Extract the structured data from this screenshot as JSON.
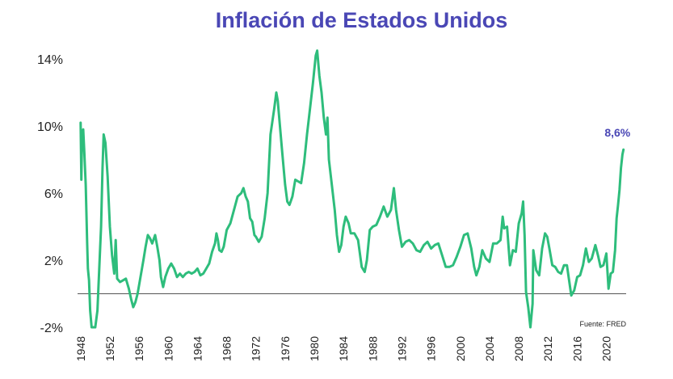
{
  "chart_data": {
    "type": "line",
    "title": "Inflación de Estados Unidos",
    "source": "Fuente: FRED",
    "xlabel": "",
    "ylabel": "",
    "xlim": [
      1947.8,
      2022.6
    ],
    "ylim": [
      -2,
      14
    ],
    "y_ticks": [
      {
        "value": 14,
        "label": "14%"
      },
      {
        "value": 10,
        "label": "10%"
      },
      {
        "value": 6,
        "label": "6%"
      },
      {
        "value": 2,
        "label": "2%"
      },
      {
        "value": -2,
        "label": "-2%"
      }
    ],
    "x_ticks": [
      {
        "value": 1948,
        "label": "1948"
      },
      {
        "value": 1952,
        "label": "1952"
      },
      {
        "value": 1956,
        "label": "1956"
      },
      {
        "value": 1960,
        "label": "1960"
      },
      {
        "value": 1964,
        "label": "1964"
      },
      {
        "value": 1968,
        "label": "1968"
      },
      {
        "value": 1972,
        "label": "1972"
      },
      {
        "value": 1976,
        "label": "1976"
      },
      {
        "value": 1980,
        "label": "1980"
      },
      {
        "value": 1984,
        "label": "1984"
      },
      {
        "value": 1988,
        "label": "1988"
      },
      {
        "value": 1992,
        "label": "1992"
      },
      {
        "value": 1996,
        "label": "1996"
      },
      {
        "value": 2000,
        "label": "2000"
      },
      {
        "value": 2004,
        "label": "2004"
      },
      {
        "value": 2008,
        "label": "2008"
      },
      {
        "value": 2012,
        "label": "2012"
      },
      {
        "value": 2016,
        "label": "2016"
      },
      {
        "value": 2020,
        "label": "2020"
      }
    ],
    "reference_line": 0,
    "grid": false,
    "colors": {
      "line": "#2ebd7c",
      "title": "#4a47b5",
      "annotation": "#4a47b5",
      "baseline": "#555555"
    },
    "annotation": {
      "text": "8,6%",
      "x": 2022.3,
      "y": 8.6
    },
    "series": [
      {
        "points": [
          [
            1948.0,
            10.2
          ],
          [
            1948.1,
            6.8
          ],
          [
            1948.2,
            9.5
          ],
          [
            1948.35,
            9.8
          ],
          [
            1948.5,
            8.5
          ],
          [
            1948.7,
            6.5
          ],
          [
            1948.9,
            3.0
          ],
          [
            1949.0,
            1.5
          ],
          [
            1949.15,
            0.8
          ],
          [
            1949.3,
            -1.0
          ],
          [
            1949.5,
            -2.0
          ],
          [
            1949.8,
            -2.5
          ],
          [
            1950.0,
            -2.0
          ],
          [
            1950.3,
            -1.0
          ],
          [
            1950.6,
            2.0
          ],
          [
            1950.8,
            4.0
          ],
          [
            1951.0,
            7.5
          ],
          [
            1951.15,
            9.5
          ],
          [
            1951.4,
            9.0
          ],
          [
            1951.7,
            7.0
          ],
          [
            1952.0,
            4.0
          ],
          [
            1952.3,
            2.3
          ],
          [
            1952.6,
            1.2
          ],
          [
            1952.8,
            3.2
          ],
          [
            1953.0,
            0.9
          ],
          [
            1953.4,
            0.7
          ],
          [
            1953.8,
            0.8
          ],
          [
            1954.2,
            0.9
          ],
          [
            1954.6,
            0.3
          ],
          [
            1954.9,
            -0.3
          ],
          [
            1955.2,
            -0.8
          ],
          [
            1955.5,
            -0.5
          ],
          [
            1955.8,
            0.0
          ],
          [
            1956.2,
            1.0
          ],
          [
            1956.6,
            2.0
          ],
          [
            1956.9,
            2.8
          ],
          [
            1957.2,
            3.5
          ],
          [
            1957.5,
            3.3
          ],
          [
            1957.8,
            3.0
          ],
          [
            1958.2,
            3.5
          ],
          [
            1958.5,
            2.8
          ],
          [
            1958.8,
            2.0
          ],
          [
            1959.0,
            1.0
          ],
          [
            1959.3,
            0.4
          ],
          [
            1959.6,
            1.0
          ],
          [
            1960.0,
            1.5
          ],
          [
            1960.4,
            1.8
          ],
          [
            1960.8,
            1.5
          ],
          [
            1961.2,
            1.0
          ],
          [
            1961.6,
            1.2
          ],
          [
            1962.0,
            1.0
          ],
          [
            1962.4,
            1.2
          ],
          [
            1962.8,
            1.3
          ],
          [
            1963.2,
            1.2
          ],
          [
            1963.6,
            1.3
          ],
          [
            1964.0,
            1.5
          ],
          [
            1964.4,
            1.1
          ],
          [
            1964.8,
            1.2
          ],
          [
            1965.2,
            1.5
          ],
          [
            1965.6,
            1.8
          ],
          [
            1966.0,
            2.5
          ],
          [
            1966.4,
            3.0
          ],
          [
            1966.6,
            3.6
          ],
          [
            1966.8,
            3.2
          ],
          [
            1967.0,
            2.6
          ],
          [
            1967.3,
            2.5
          ],
          [
            1967.6,
            2.8
          ],
          [
            1968.0,
            3.8
          ],
          [
            1968.5,
            4.2
          ],
          [
            1969.0,
            5.0
          ],
          [
            1969.5,
            5.8
          ],
          [
            1970.0,
            6.0
          ],
          [
            1970.3,
            6.3
          ],
          [
            1970.6,
            5.8
          ],
          [
            1970.9,
            5.5
          ],
          [
            1971.2,
            4.5
          ],
          [
            1971.5,
            4.3
          ],
          [
            1971.8,
            3.5
          ],
          [
            1972.0,
            3.4
          ],
          [
            1972.4,
            3.1
          ],
          [
            1972.8,
            3.4
          ],
          [
            1973.2,
            4.5
          ],
          [
            1973.6,
            6.0
          ],
          [
            1974.0,
            9.5
          ],
          [
            1974.5,
            11.0
          ],
          [
            1974.8,
            12.0
          ],
          [
            1975.0,
            11.5
          ],
          [
            1975.3,
            10.0
          ],
          [
            1975.6,
            8.5
          ],
          [
            1976.0,
            6.5
          ],
          [
            1976.3,
            5.5
          ],
          [
            1976.6,
            5.3
          ],
          [
            1977.0,
            5.8
          ],
          [
            1977.4,
            6.8
          ],
          [
            1977.8,
            6.7
          ],
          [
            1978.2,
            6.6
          ],
          [
            1978.6,
            7.8
          ],
          [
            1979.0,
            9.5
          ],
          [
            1979.4,
            11.0
          ],
          [
            1979.8,
            12.5
          ],
          [
            1980.2,
            14.2
          ],
          [
            1980.4,
            14.5
          ],
          [
            1980.7,
            13.0
          ],
          [
            1981.0,
            12.0
          ],
          [
            1981.3,
            10.5
          ],
          [
            1981.6,
            9.5
          ],
          [
            1981.8,
            10.5
          ],
          [
            1982.0,
            8.0
          ],
          [
            1982.4,
            6.5
          ],
          [
            1982.8,
            5.0
          ],
          [
            1983.1,
            3.5
          ],
          [
            1983.4,
            2.5
          ],
          [
            1983.7,
            2.9
          ],
          [
            1984.0,
            4.0
          ],
          [
            1984.3,
            4.6
          ],
          [
            1984.7,
            4.2
          ],
          [
            1985.0,
            3.6
          ],
          [
            1985.5,
            3.6
          ],
          [
            1986.0,
            3.2
          ],
          [
            1986.5,
            1.6
          ],
          [
            1986.9,
            1.3
          ],
          [
            1987.2,
            2.0
          ],
          [
            1987.6,
            3.8
          ],
          [
            1988.0,
            4.0
          ],
          [
            1988.5,
            4.1
          ],
          [
            1989.0,
            4.6
          ],
          [
            1989.5,
            5.2
          ],
          [
            1990.0,
            4.6
          ],
          [
            1990.5,
            5.0
          ],
          [
            1990.9,
            6.3
          ],
          [
            1991.2,
            5.0
          ],
          [
            1991.6,
            3.8
          ],
          [
            1992.0,
            2.8
          ],
          [
            1992.5,
            3.1
          ],
          [
            1993.0,
            3.2
          ],
          [
            1993.5,
            3.0
          ],
          [
            1994.0,
            2.6
          ],
          [
            1994.5,
            2.5
          ],
          [
            1995.0,
            2.9
          ],
          [
            1995.5,
            3.1
          ],
          [
            1996.0,
            2.7
          ],
          [
            1996.5,
            2.9
          ],
          [
            1997.0,
            3.0
          ],
          [
            1997.5,
            2.3
          ],
          [
            1998.0,
            1.6
          ],
          [
            1998.5,
            1.6
          ],
          [
            1999.0,
            1.7
          ],
          [
            1999.5,
            2.2
          ],
          [
            2000.0,
            2.8
          ],
          [
            2000.5,
            3.5
          ],
          [
            2001.0,
            3.6
          ],
          [
            2001.5,
            2.7
          ],
          [
            2001.9,
            1.6
          ],
          [
            2002.2,
            1.1
          ],
          [
            2002.6,
            1.6
          ],
          [
            2003.0,
            2.6
          ],
          [
            2003.5,
            2.1
          ],
          [
            2004.0,
            1.9
          ],
          [
            2004.5,
            3.0
          ],
          [
            2005.0,
            3.0
          ],
          [
            2005.5,
            3.2
          ],
          [
            2005.8,
            4.6
          ],
          [
            2006.0,
            3.9
          ],
          [
            2006.4,
            4.0
          ],
          [
            2006.8,
            1.7
          ],
          [
            2007.2,
            2.6
          ],
          [
            2007.6,
            2.5
          ],
          [
            2008.0,
            4.2
          ],
          [
            2008.4,
            4.8
          ],
          [
            2008.6,
            5.5
          ],
          [
            2008.8,
            3.5
          ],
          [
            2009.0,
            0.1
          ],
          [
            2009.3,
            -0.8
          ],
          [
            2009.6,
            -2.0
          ],
          [
            2009.9,
            -0.6
          ],
          [
            2010.0,
            2.6
          ],
          [
            2010.4,
            1.4
          ],
          [
            2010.8,
            1.1
          ],
          [
            2011.2,
            2.7
          ],
          [
            2011.6,
            3.6
          ],
          [
            2011.9,
            3.4
          ],
          [
            2012.2,
            2.7
          ],
          [
            2012.6,
            1.7
          ],
          [
            2013.0,
            1.6
          ],
          [
            2013.4,
            1.3
          ],
          [
            2013.8,
            1.2
          ],
          [
            2014.2,
            1.7
          ],
          [
            2014.6,
            1.7
          ],
          [
            2014.9,
            0.8
          ],
          [
            2015.2,
            -0.1
          ],
          [
            2015.6,
            0.2
          ],
          [
            2016.0,
            1.0
          ],
          [
            2016.4,
            1.1
          ],
          [
            2016.8,
            1.7
          ],
          [
            2017.2,
            2.7
          ],
          [
            2017.6,
            1.9
          ],
          [
            2018.0,
            2.1
          ],
          [
            2018.5,
            2.9
          ],
          [
            2018.9,
            2.2
          ],
          [
            2019.2,
            1.6
          ],
          [
            2019.6,
            1.7
          ],
          [
            2020.0,
            2.4
          ],
          [
            2020.3,
            0.3
          ],
          [
            2020.6,
            1.2
          ],
          [
            2020.9,
            1.3
          ],
          [
            2021.2,
            2.6
          ],
          [
            2021.4,
            4.5
          ],
          [
            2021.6,
            5.3
          ],
          [
            2021.8,
            6.2
          ],
          [
            2022.0,
            7.5
          ],
          [
            2022.2,
            8.3
          ],
          [
            2022.35,
            8.6
          ]
        ]
      }
    ]
  }
}
